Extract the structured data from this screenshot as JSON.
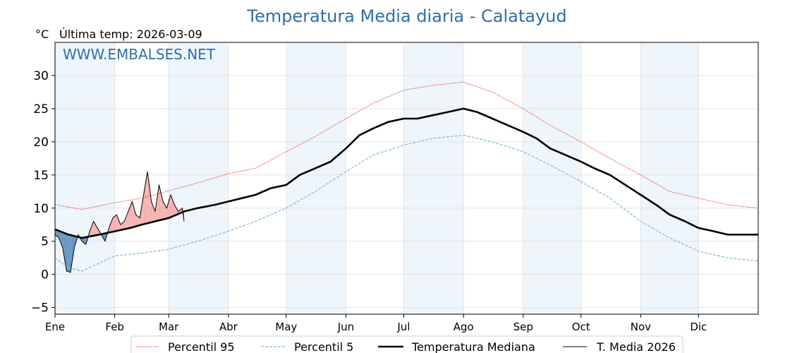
{
  "chart_data": {
    "type": "line",
    "title": "Temperatura Media diaria - Calatayud",
    "unit": "°C",
    "last_temp_label": "Última temp: 2026-03-09",
    "watermark": "WWW.EMBALSES.NET",
    "ylim": [
      -6,
      35
    ],
    "yticks": [
      30,
      25,
      20,
      15,
      10,
      5,
      0,
      -5
    ],
    "ytick_labels": [
      "30",
      "25",
      "20",
      "15",
      "10",
      "5",
      "0",
      "−5"
    ],
    "xlim": [
      1,
      366
    ],
    "month_labels": [
      "Ene",
      "Feb",
      "Mar",
      "Abr",
      "May",
      "Jun",
      "Jul",
      "Ago",
      "Sep",
      "Oct",
      "Nov",
      "Dic"
    ],
    "month_starts": [
      1,
      32,
      60,
      91,
      121,
      152,
      182,
      213,
      244,
      274,
      305,
      335
    ],
    "grid": true,
    "legend_position": "bottom",
    "colors": {
      "p95": "#e8221c",
      "p5": "#7fb9d8",
      "median": "#000000",
      "current": "#000000",
      "above_fill": "#f4a6a6",
      "below_fill": "#4a80b6",
      "stripe": "#eef5fb",
      "title": "#2e6fa7"
    },
    "series": [
      {
        "name": "Percentil 95",
        "style": "dotted",
        "x": [
          1,
          15,
          32,
          46,
          60,
          75,
          91,
          105,
          121,
          136,
          152,
          166,
          182,
          197,
          213,
          228,
          244,
          258,
          274,
          289,
          305,
          320,
          335,
          350,
          366
        ],
        "y": [
          10.5,
          9.8,
          10.8,
          11.5,
          12.6,
          13.8,
          15.2,
          16.0,
          18.5,
          20.8,
          23.5,
          25.8,
          27.8,
          28.5,
          29.0,
          27.5,
          25.0,
          22.5,
          20.0,
          17.5,
          15.0,
          12.5,
          11.5,
          10.5,
          10.0
        ]
      },
      {
        "name": "Percentil 5",
        "style": "dashed",
        "x": [
          1,
          8,
          15,
          32,
          46,
          60,
          75,
          91,
          105,
          121,
          136,
          152,
          166,
          182,
          197,
          213,
          228,
          244,
          258,
          274,
          289,
          305,
          320,
          335,
          350,
          366
        ],
        "y": [
          2.5,
          1.0,
          0.5,
          2.8,
          3.2,
          3.8,
          5.0,
          6.5,
          8.0,
          10.0,
          12.5,
          15.5,
          18.0,
          19.5,
          20.5,
          21.0,
          20.0,
          18.5,
          16.5,
          14.0,
          11.5,
          8.0,
          5.5,
          3.5,
          2.5,
          2.0
        ]
      },
      {
        "name": "Temperatura Mediana",
        "style": "bold",
        "x": [
          1,
          8,
          15,
          24,
          32,
          40,
          46,
          53,
          60,
          68,
          75,
          84,
          91,
          98,
          105,
          113,
          121,
          128,
          136,
          144,
          152,
          159,
          166,
          174,
          182,
          189,
          197,
          205,
          213,
          220,
          228,
          236,
          244,
          251,
          258,
          266,
          274,
          281,
          289,
          297,
          305,
          313,
          320,
          328,
          335,
          343,
          350,
          358,
          366
        ],
        "y": [
          6.8,
          6.0,
          5.5,
          6.0,
          6.5,
          7.0,
          7.5,
          8.0,
          8.5,
          9.5,
          10.0,
          10.5,
          11.0,
          11.5,
          12.0,
          13.0,
          13.5,
          15.0,
          16.0,
          17.0,
          19.0,
          21.0,
          22.0,
          23.0,
          23.5,
          23.5,
          24.0,
          24.5,
          25.0,
          24.5,
          23.5,
          22.5,
          21.5,
          20.5,
          19.0,
          18.0,
          17.0,
          16.0,
          15.0,
          13.5,
          12.0,
          10.5,
          9.0,
          8.0,
          7.0,
          6.5,
          6.0,
          6.0,
          6.0
        ]
      },
      {
        "name": "T. Media 2026",
        "style": "thin",
        "x": [
          1,
          3,
          5,
          7,
          9,
          11,
          13,
          15,
          17,
          19,
          21,
          23,
          25,
          27,
          29,
          31,
          33,
          35,
          37,
          39,
          41,
          43,
          45,
          47,
          49,
          51,
          53,
          55,
          57,
          59,
          61,
          63,
          65,
          67,
          68
        ],
        "y": [
          6.0,
          5.5,
          4.0,
          0.5,
          0.3,
          4.0,
          6.0,
          5.0,
          4.5,
          6.5,
          8.0,
          7.0,
          6.0,
          5.0,
          7.0,
          8.5,
          9.0,
          7.5,
          8.0,
          9.5,
          11.0,
          9.0,
          8.5,
          12.0,
          15.5,
          11.0,
          9.5,
          13.5,
          11.0,
          10.0,
          12.0,
          10.5,
          9.5,
          10.0,
          8.0
        ]
      }
    ]
  }
}
